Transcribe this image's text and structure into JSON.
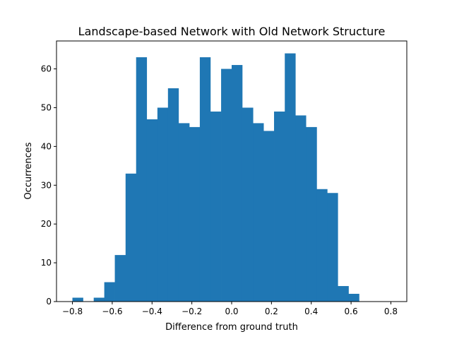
{
  "chart_data": {
    "type": "bar",
    "title": "Landscape-based Network with Old Network Structure",
    "xlabel": "Difference from ground truth",
    "ylabel": "Occurrences",
    "xlim": [
      -0.88,
      0.88
    ],
    "ylim": [
      0,
      67.2
    ],
    "xticks": [
      -0.8,
      -0.6,
      -0.4,
      -0.2,
      0.0,
      0.2,
      0.4,
      0.6,
      0.8
    ],
    "xtick_labels": [
      "−0.8",
      "−0.6",
      "−0.4",
      "−0.2",
      "0.0",
      "0.2",
      "0.4",
      "0.6",
      "0.8"
    ],
    "yticks": [
      0,
      10,
      20,
      30,
      40,
      50,
      60
    ],
    "ytick_labels": [
      "0",
      "10",
      "20",
      "30",
      "40",
      "50",
      "60"
    ],
    "bin_edges": [
      -0.8,
      -0.747,
      -0.693,
      -0.64,
      -0.587,
      -0.533,
      -0.48,
      -0.427,
      -0.373,
      -0.32,
      -0.267,
      -0.213,
      -0.16,
      -0.107,
      -0.053,
      0.0,
      0.053,
      0.107,
      0.16,
      0.213,
      0.267,
      0.32,
      0.373,
      0.427,
      0.48,
      0.533,
      0.587,
      0.64
    ],
    "values": [
      1,
      0,
      1,
      5,
      12,
      33,
      63,
      47,
      50,
      55,
      46,
      45,
      63,
      49,
      60,
      61,
      50,
      46,
      44,
      49,
      64,
      48,
      45,
      29,
      28,
      4,
      2
    ],
    "bar_color": "#1f77b4",
    "grid": false,
    "legend": false
  }
}
